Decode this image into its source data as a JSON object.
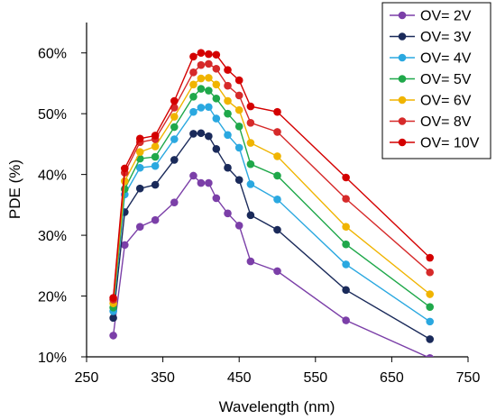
{
  "chart_data": {
    "type": "line",
    "xlabel": "Wavelength (nm)",
    "ylabel": "PDE (%)",
    "xlim": [
      250,
      750
    ],
    "ylim": [
      10,
      65
    ],
    "xticks": [
      250,
      350,
      450,
      550,
      650,
      750
    ],
    "xtick_labels": [
      "250",
      "350",
      "450",
      "550",
      "650",
      "750"
    ],
    "yticks": [
      10,
      20,
      30,
      40,
      50,
      60
    ],
    "ytick_labels": [
      "10%",
      "20%",
      "30%",
      "40%",
      "50%",
      "60%"
    ],
    "grid": false,
    "legend_position": "top-right",
    "x": [
      285,
      300,
      320,
      340,
      365,
      390,
      400,
      410,
      420,
      435,
      450,
      465,
      500,
      590,
      700
    ],
    "series": [
      {
        "name": "OV= 2V",
        "color": "#7b3fa8",
        "values": [
          13.5,
          28.4,
          31.4,
          32.5,
          35.4,
          39.8,
          38.6,
          38.6,
          36.1,
          33.6,
          31.6,
          25.7,
          24.1,
          16.0,
          9.8
        ]
      },
      {
        "name": "OV= 3V",
        "color": "#1a2a5a",
        "values": [
          16.4,
          33.8,
          37.7,
          38.3,
          42.4,
          46.7,
          46.8,
          46.3,
          44.2,
          41.1,
          39.1,
          33.3,
          30.9,
          21.0,
          12.9
        ]
      },
      {
        "name": "OV= 4V",
        "color": "#2aa8e0",
        "values": [
          17.5,
          36.7,
          41.1,
          41.4,
          45.8,
          50.3,
          51.0,
          51.1,
          49.2,
          46.5,
          44.4,
          38.4,
          35.9,
          25.2,
          15.8
        ]
      },
      {
        "name": "OV= 5V",
        "color": "#1fa84a",
        "values": [
          18.1,
          37.6,
          42.6,
          42.9,
          47.8,
          52.8,
          54.1,
          53.8,
          52.5,
          50.0,
          47.9,
          41.7,
          39.8,
          28.5,
          18.2
        ]
      },
      {
        "name": "OV= 6V",
        "color": "#f0b400",
        "values": [
          18.8,
          38.9,
          43.7,
          44.6,
          49.5,
          54.8,
          55.8,
          55.9,
          54.8,
          52.1,
          50.6,
          45.2,
          43.0,
          31.4,
          20.3
        ]
      },
      {
        "name": "OV= 8V",
        "color": "#d62a2a",
        "values": [
          19.4,
          40.3,
          45.3,
          45.8,
          51.0,
          56.8,
          58.0,
          58.2,
          57.4,
          54.6,
          53.0,
          48.5,
          47.0,
          36.0,
          23.9
        ]
      },
      {
        "name": "OV= 10V",
        "color": "#d40000",
        "values": [
          19.7,
          41.0,
          45.9,
          46.4,
          52.1,
          59.4,
          60.0,
          59.8,
          59.7,
          57.2,
          55.5,
          51.2,
          50.3,
          39.5,
          26.3
        ]
      }
    ]
  }
}
